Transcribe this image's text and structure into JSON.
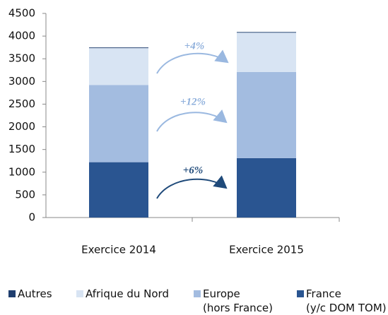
{
  "chart_data": {
    "type": "stacked_bar",
    "categories": [
      "Exercice 2014",
      "Exercice 2015"
    ],
    "series": [
      {
        "name": "France\n(y/c DOM TOM)",
        "color": "#2a5591",
        "values": [
          1220,
          1310
        ]
      },
      {
        "name": "Europe\n(hors France)",
        "color": "#a3bce0",
        "values": [
          1700,
          1900
        ]
      },
      {
        "name": "Afrique du Nord",
        "color": "#d8e4f3",
        "values": [
          815,
          865
        ]
      },
      {
        "name": "Autres",
        "color": "#1f3e6e",
        "values": [
          15,
          15
        ]
      }
    ],
    "legend_order": [
      3,
      2,
      1,
      0
    ],
    "annotations": [
      {
        "text": "+4%",
        "color": "#8fb0dc"
      },
      {
        "text": "+12%",
        "color": "#8fb0dc"
      },
      {
        "text": "+6%",
        "color": "#1f4a7a"
      }
    ],
    "ylim": [
      0,
      4500
    ],
    "yticks": [
      0,
      500,
      1000,
      1500,
      2000,
      2500,
      3000,
      3500,
      4000,
      4500
    ],
    "grid": false,
    "legend": "bottom"
  }
}
